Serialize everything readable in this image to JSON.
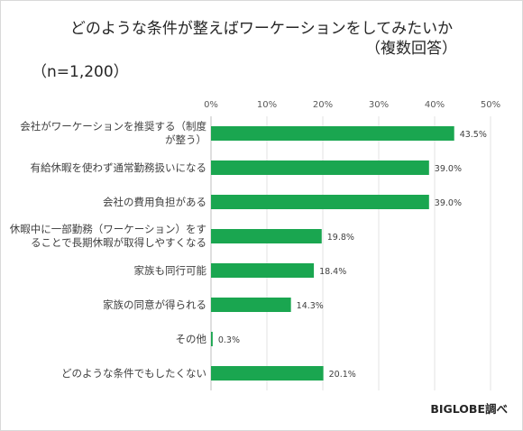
{
  "chart_data": {
    "type": "bar",
    "orientation": "horizontal",
    "title": "どのような条件が整えばワーケーションをしてみたいか",
    "title_note": "（複数回答）",
    "sample_size": "（n=1,200）",
    "categories": [
      [
        "会社がワーケーションを推奨する（制度",
        "が整う）"
      ],
      [
        "有給休暇を使わず通常勤務扱いになる"
      ],
      [
        "会社の費用負担がある"
      ],
      [
        "休暇中に一部勤務（ワーケーション）をす",
        "ることで長期休暇が取得しやすくなる"
      ],
      [
        "家族も同行可能"
      ],
      [
        "家族の同意が得られる"
      ],
      [
        "その他"
      ],
      [
        "どのような条件でもしたくない"
      ]
    ],
    "values": [
      43.5,
      39.0,
      39.0,
      19.8,
      18.4,
      14.3,
      0.3,
      20.1
    ],
    "value_labels": [
      "43.5%",
      "39.0%",
      "39.0%",
      "19.8%",
      "18.4%",
      "14.3%",
      "0.3%",
      "20.1%"
    ],
    "xlim": [
      0,
      50
    ],
    "x_ticks": [
      "0%",
      "10%",
      "20%",
      "30%",
      "40%",
      "50%"
    ],
    "grid": true,
    "bar_color": "#1aa650",
    "source": "BIGLOBE調べ"
  }
}
